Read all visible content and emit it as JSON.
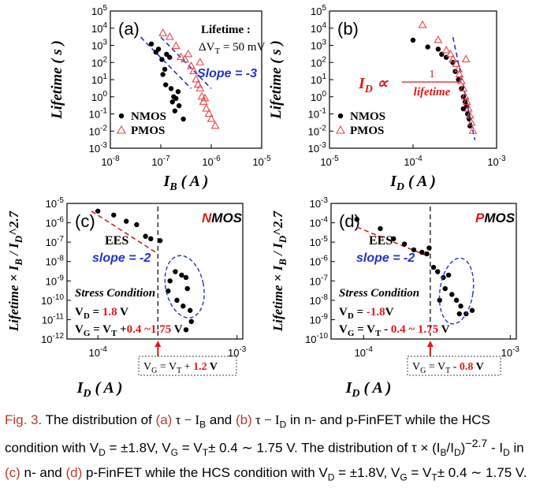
{
  "colors": {
    "nmos": "#000000",
    "pmos": "#e8474a",
    "fit_blue": "#2233cc",
    "fit_red": "#d21e1e",
    "label_red": "#e01818"
  },
  "chart_data": [
    {
      "id": "a",
      "type": "scatter",
      "panel_label": "(a)",
      "xscale": "log",
      "yscale": "log",
      "xlim": [
        1e-08,
        1e-05
      ],
      "ylim": [
        0.001,
        100000.0
      ],
      "xticks": [
        "10^-8",
        "10^-7",
        "10^-6",
        "10^-5"
      ],
      "yticks": [
        "10^-3",
        "10^-2",
        "10^-1",
        "10^0",
        "10^1",
        "10^2",
        "10^3",
        "10^4",
        "10^5"
      ],
      "xlabel_base": "I",
      "xlabel_sub": "B",
      "xlabel_unit": " ( A )",
      "ylabel": "Lifetime ( s )",
      "annotations": {
        "title": "Lifetime :",
        "subtitle": "ΔV",
        "subtitle_sub": "T",
        "subtitle_rest": " = 50 mV",
        "slope": "Slope = -3"
      },
      "legend": [
        "NMOS",
        "PMOS"
      ],
      "legend_position": "bottom-left",
      "series": [
        {
          "name": "NMOS",
          "marker": "dot",
          "points": [
            [
              6.5e-08,
              1200
            ],
            [
              8e-08,
              400
            ],
            [
              9e-08,
              600
            ],
            [
              1.05e-07,
              150
            ],
            [
              1.2e-07,
              40
            ],
            [
              1.3e-07,
              300
            ],
            [
              1.5e-07,
              200
            ],
            [
              1.1e-07,
              20
            ],
            [
              1.25e-07,
              5
            ],
            [
              1.6e-07,
              3
            ],
            [
              1.8e-07,
              1
            ],
            [
              2e-07,
              0.8
            ],
            [
              1.7e-07,
              0.5
            ],
            [
              2.3e-07,
              0.3
            ],
            [
              2.8e-07,
              0.05
            ],
            [
              2.2e-07,
              2
            ],
            [
              1.9e-07,
              0.15
            ]
          ]
        },
        {
          "name": "PMOS",
          "marker": "triangle",
          "points": [
            [
              1.1e-07,
              5000
            ],
            [
              1.5e-07,
              3000
            ],
            [
              2e-07,
              900
            ],
            [
              2.5e-07,
              200
            ],
            [
              3e-07,
              150
            ],
            [
              3.5e-07,
              300
            ],
            [
              4e-07,
              60
            ],
            [
              4.5e-07,
              30
            ],
            [
              5e-07,
              10
            ],
            [
              5.5e-07,
              5
            ],
            [
              6e-07,
              3
            ],
            [
              6.5e-07,
              1
            ],
            [
              7e-07,
              0.5
            ],
            [
              7.5e-07,
              0.8
            ],
            [
              8e-07,
              0.2
            ],
            [
              9e-07,
              0.1
            ],
            [
              1e-06,
              0.05
            ],
            [
              1.2e-06,
              0.02
            ],
            [
              6e-07,
              100
            ]
          ]
        }
      ],
      "fit_lines": [
        {
          "color": "fit_blue",
          "points": [
            [
              4e-08,
              3000
            ],
            [
              4e-07,
              3
            ]
          ]
        },
        {
          "color": "fit_blue",
          "points": [
            [
              1e-07,
              3000
            ],
            [
              1e-06,
              3
            ]
          ]
        }
      ]
    },
    {
      "id": "b",
      "type": "scatter",
      "panel_label": "(b)",
      "xscale": "log",
      "yscale": "log",
      "xlim": [
        1e-05,
        0.001
      ],
      "ylim": [
        0.001,
        100000.0
      ],
      "xticks": [
        "10^-5",
        "10^-4",
        "10^-3"
      ],
      "yticks": [
        "10^-3",
        "10^-2",
        "10^-1",
        "10^0",
        "10^1",
        "10^2",
        "10^3",
        "10^4",
        "10^5"
      ],
      "xlabel_base": "I",
      "xlabel_sub": "D",
      "xlabel_unit": " ( A )",
      "ylabel": "Lifetime ( s )",
      "annotations": {
        "relation_lhs": "I",
        "relation_sub": "D",
        "relation_sym": " ∝ ",
        "relation_num": "1",
        "relation_den": "lifetime"
      },
      "legend": [
        "NMOS",
        "PMOS"
      ],
      "legend_position": "bottom-left",
      "series": [
        {
          "name": "NMOS",
          "marker": "dot",
          "points": [
            [
              0.0001,
              2000
            ],
            [
              0.00015,
              800
            ],
            [
              0.0002,
              600
            ],
            [
              0.00022,
              300
            ],
            [
              0.00025,
              200
            ],
            [
              0.0003,
              100
            ],
            [
              0.00032,
              30
            ],
            [
              0.00035,
              10
            ],
            [
              0.00038,
              3
            ],
            [
              0.0004,
              1
            ],
            [
              0.00042,
              0.5
            ],
            [
              0.00044,
              0.3
            ],
            [
              0.00045,
              0.1
            ],
            [
              0.00047,
              0.05
            ],
            [
              0.00048,
              0.02
            ],
            [
              0.0004,
              0.2
            ]
          ]
        },
        {
          "name": "PMOS",
          "marker": "triangle",
          "points": [
            [
              0.00013,
              15000
            ],
            [
              0.0002,
              2000
            ],
            [
              0.00025,
              500
            ],
            [
              0.00028,
              300
            ],
            [
              0.0003,
              150
            ],
            [
              0.00033,
              80
            ],
            [
              0.00035,
              40
            ],
            [
              0.00036,
              20
            ],
            [
              0.00038,
              8
            ],
            [
              0.0004,
              3
            ],
            [
              0.00042,
              1
            ],
            [
              0.00044,
              0.5
            ],
            [
              0.00046,
              0.2
            ],
            [
              0.00048,
              0.08
            ],
            [
              0.0005,
              0.03
            ],
            [
              0.00052,
              0.01
            ],
            [
              0.00043,
              150
            ]
          ]
        }
      ],
      "fit_lines": [
        {
          "color": "fit_blue",
          "points": [
            [
              0.0003,
              3000
            ],
            [
              0.00055,
              0.003
            ]
          ]
        }
      ]
    },
    {
      "id": "c",
      "type": "scatter",
      "panel_label": "(c)",
      "xscale": "log",
      "yscale": "log",
      "xlim": [
        6e-05,
        0.0011
      ],
      "ylim": [
        1e-12,
        1e-05
      ],
      "xticks": [
        "10^-4",
        "10^-3"
      ],
      "yticks": [
        "10^-12",
        "10^-11",
        "10^-10",
        "10^-9",
        "10^-8",
        "10^-7",
        "10^-6",
        "10^-5"
      ],
      "xlabel_base": "I",
      "xlabel_sub": "D",
      "xlabel_unit": " ( A )",
      "ylabel": "Lifetime × I_B / I_D^2.7",
      "annotations": {
        "device_red": "N",
        "device_black": "MOS",
        "ees": "EES",
        "slope": "slope = -2",
        "stress": "Stress Condition",
        "vd_pre": "V",
        "vd_sub": "D",
        "vd_eq": " = ",
        "vd_val": "1.8",
        "vd_unit": " V",
        "vg_pre": "V",
        "vg_sub": "G",
        "vg_eq": " = V",
        "vg_sub2": "T",
        "vg_plus": " +",
        "vg_range": "0.4 ~1.75",
        "vg_unit": " V",
        "box_pre": "V",
        "box_sub": "G",
        "box_eq": " = V",
        "box_sub2": "T",
        "box_op": " + ",
        "box_val": "1.2",
        "box_unit": " V"
      },
      "series": [
        {
          "name": "NMOS",
          "marker": "dot",
          "points": [
            [
              0.0001,
              4e-06
            ],
            [
              0.00013,
              2.5e-06
            ],
            [
              0.00016,
              1.2e-06
            ],
            [
              0.00019,
              8e-07
            ],
            [
              0.00022,
              2e-07
            ],
            [
              0.00024,
              1.5e-07
            ],
            [
              0.00028,
              1.2e-07
            ],
            [
              0.00033,
              1e-09
            ],
            [
              0.00032,
              3e-10
            ],
            [
              0.00036,
              3e-09
            ],
            [
              0.0004,
              2e-09
            ],
            [
              0.00044,
              4e-10
            ],
            [
              0.00041,
              5e-11
            ],
            [
              0.00046,
              3e-11
            ],
            [
              0.00047,
              8e-12
            ],
            [
              0.00043,
              3e-12
            ],
            [
              0.00037,
              1e-10
            ],
            [
              0.00043,
              1.5e-09
            ]
          ]
        }
      ],
      "fit_lines": [
        {
          "color": "fit_red",
          "points": [
            [
              9e-05,
              4e-06
            ],
            [
              0.00026,
              3e-08
            ]
          ]
        }
      ]
    },
    {
      "id": "d",
      "type": "scatter",
      "panel_label": "(d)",
      "xscale": "log",
      "yscale": "log",
      "xlim": [
        6e-05,
        0.0011
      ],
      "ylim": [
        1e-10,
        0.001
      ],
      "xticks": [
        "10^-4",
        "10^-3"
      ],
      "yticks": [
        "10^-10",
        "10^-9",
        "10^-8",
        "10^-7",
        "10^-6",
        "10^-5",
        "10^-4",
        "10^-3"
      ],
      "xlabel_base": "I",
      "xlabel_sub": "D",
      "xlabel_unit": " ( A )",
      "ylabel": "Lifetime × I_B / I_D^2.7",
      "annotations": {
        "device_red": "P",
        "device_black": "MOS",
        "ees": "EES",
        "slope": "slope = -2",
        "stress": "Stress Condition",
        "vd_pre": "V",
        "vd_sub": "D",
        "vd_eq": " = ",
        "vd_val": "-1.8",
        "vd_unit": "V",
        "vg_pre": "V",
        "vg_sub": "G",
        "vg_eq": " = V",
        "vg_sub2": "T",
        "vg_plus": " - ",
        "vg_range": "0.4 ~ 1.75",
        "vg_unit": " V",
        "box_pre": "V",
        "box_sub": "G",
        "box_eq": " = V",
        "box_sub2": "T",
        "box_op": " - ",
        "box_val": "0.8",
        "box_unit": " V"
      },
      "series": [
        {
          "name": "PMOS",
          "marker": "dot",
          "points": [
            [
              9e-05,
              0.00015
            ],
            [
              0.00013,
              5e-05
            ],
            [
              0.00016,
              1.5e-05
            ],
            [
              0.00019,
              8e-06
            ],
            [
              0.00022,
              4e-06
            ],
            [
              0.00025,
              3e-06
            ],
            [
              0.00027,
              2.5e-06
            ],
            [
              0.00028,
              5e-06
            ],
            [
              0.0003,
              5e-07
            ],
            [
              0.00032,
              3e-07
            ],
            [
              0.00035,
              1.5e-07
            ],
            [
              0.00038,
              2e-07
            ],
            [
              0.00033,
              1e-08
            ],
            [
              0.00036,
              4e-08
            ],
            [
              0.0004,
              2e-08
            ],
            [
              0.00043,
              1e-08
            ],
            [
              0.00046,
              5e-09
            ],
            [
              0.0005,
              2e-09
            ],
            [
              0.00055,
              3e-09
            ],
            [
              0.00045,
              2e-09
            ]
          ]
        }
      ],
      "fit_lines": [
        {
          "color": "fit_red",
          "points": [
            [
              9e-05,
              6e-05
            ],
            [
              0.00027,
              2e-06
            ]
          ]
        }
      ]
    }
  ],
  "caption": {
    "fig": "Fig. 3.",
    "p1": " The distribution of ",
    "a": "(a)",
    "p2": " τ − I",
    "p2_sub": "B",
    "p3": " and ",
    "b": "(b)",
    "p4": " τ − I",
    "p4_sub": "D",
    "p5": " in n- and p-FinFET while the HCS condition with V",
    "p5_sub": "D",
    "p6": " = ±1.8V, V",
    "p6_sub": "G",
    "p7": " = V",
    "p7_sub": "T",
    "p8": "± 0.4 ∼ 1.75 V. The distribution of τ × (I",
    "p8_sub": "B",
    "p9": "/I",
    "p9_sub": "D",
    "p10": ")",
    "p10_sup": "−2.7",
    "p11": " - I",
    "p11_sub": "D",
    "p12": " in ",
    "c": "(c)",
    "p13": " n- and ",
    "d": "(d)",
    "p14": " p-FinFET while the HCS condition with V",
    "p14_sub": "D",
    "p15": " = ±1.8V, V",
    "p15_sub": "G",
    "p16": " = V",
    "p16_sub": "T",
    "p17": "± 0.4 ∼ 1.75 V."
  }
}
